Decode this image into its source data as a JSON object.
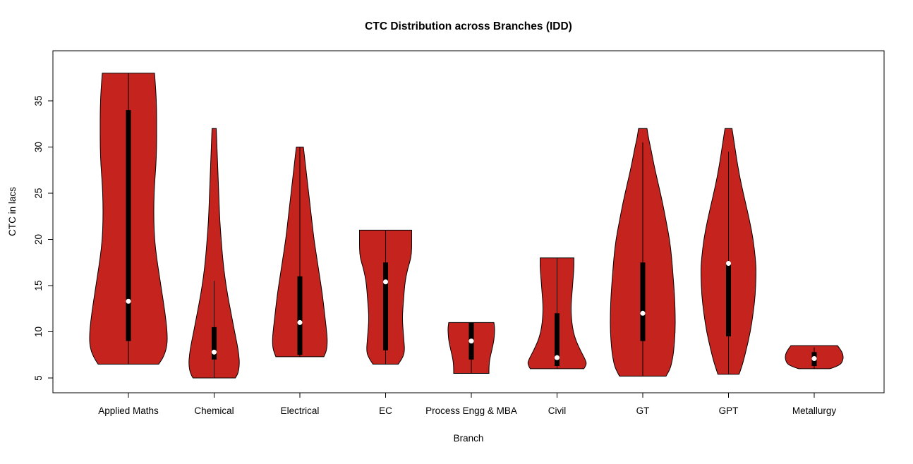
{
  "chart_data": {
    "type": "violin",
    "title": "CTC Distribution across Branches (IDD)",
    "xlabel": "Branch",
    "ylabel": "CTC in lacs",
    "y_ticks": [
      5,
      10,
      15,
      20,
      25,
      30,
      35
    ],
    "ylim": [
      3.5,
      40
    ],
    "grid": false,
    "legend": "none",
    "fill_color": "#C5241E",
    "outline_color": "#000000",
    "box_color": "#000000",
    "median_dot_color": "#FFFFFF",
    "categories": [
      "Applied Maths",
      "Chemical",
      "Electrical",
      "EC",
      "Process Engg & MBA",
      "Civil",
      "GT",
      "GPT",
      "Metallurgy"
    ],
    "series": [
      {
        "label": "Applied Maths",
        "min": 6.5,
        "max": 38,
        "whisker_low": 6.5,
        "whisker_high": 38,
        "q1": 9,
        "q3": 34,
        "median": 13.3,
        "profile": [
          [
            38,
            37
          ],
          [
            36,
            39
          ],
          [
            34,
            40
          ],
          [
            32,
            40
          ],
          [
            30,
            40
          ],
          [
            28,
            39
          ],
          [
            26,
            37
          ],
          [
            24,
            36
          ],
          [
            22,
            36
          ],
          [
            20,
            37
          ],
          [
            18,
            40
          ],
          [
            16,
            44
          ],
          [
            14,
            48
          ],
          [
            12,
            52
          ],
          [
            10,
            55
          ],
          [
            8.5,
            55
          ],
          [
            7.3,
            50
          ],
          [
            6.5,
            43
          ]
        ]
      },
      {
        "label": "Chemical",
        "min": 5,
        "max": 32,
        "whisker_low": 5,
        "whisker_high": 15.5,
        "q1": 7,
        "q3": 10.5,
        "median": 7.8,
        "profile": [
          [
            32,
            3
          ],
          [
            30,
            4
          ],
          [
            28,
            5
          ],
          [
            26,
            6
          ],
          [
            24,
            7
          ],
          [
            22,
            8
          ],
          [
            20,
            10
          ],
          [
            18,
            12
          ],
          [
            16,
            15
          ],
          [
            14,
            19
          ],
          [
            12,
            24
          ],
          [
            10,
            29
          ],
          [
            8.5,
            33
          ],
          [
            7.5,
            35
          ],
          [
            6.5,
            36
          ],
          [
            5.5,
            34
          ],
          [
            5,
            30
          ]
        ]
      },
      {
        "label": "Electrical",
        "min": 7.3,
        "max": 30,
        "whisker_low": 7.3,
        "whisker_high": 30,
        "q1": 7.5,
        "q3": 16,
        "median": 11,
        "profile": [
          [
            30,
            5
          ],
          [
            28,
            8
          ],
          [
            26,
            11
          ],
          [
            24,
            14
          ],
          [
            22,
            17
          ],
          [
            20,
            20
          ],
          [
            18,
            24
          ],
          [
            16,
            28
          ],
          [
            14,
            32
          ],
          [
            12,
            35
          ],
          [
            10,
            38
          ],
          [
            9,
            39
          ],
          [
            8,
            38
          ],
          [
            7.3,
            34
          ]
        ]
      },
      {
        "label": "EC",
        "min": 6.5,
        "max": 21,
        "whisker_low": 6.5,
        "whisker_high": 21,
        "q1": 8,
        "q3": 17.5,
        "median": 15.4,
        "profile": [
          [
            21,
            37
          ],
          [
            20,
            37
          ],
          [
            19,
            37
          ],
          [
            18,
            36
          ],
          [
            17,
            32
          ],
          [
            16,
            29
          ],
          [
            15,
            27
          ],
          [
            14,
            26
          ],
          [
            13,
            25
          ],
          [
            12,
            24
          ],
          [
            11,
            24
          ],
          [
            10,
            25
          ],
          [
            9,
            26
          ],
          [
            8,
            27
          ],
          [
            7.3,
            25
          ],
          [
            6.5,
            18
          ]
        ]
      },
      {
        "label": "Process Engg & MBA",
        "min": 5.5,
        "max": 11,
        "whisker_low": 5.5,
        "whisker_high": 11,
        "q1": 7,
        "q3": 11,
        "median": 9,
        "profile": [
          [
            11,
            32
          ],
          [
            10.5,
            33
          ],
          [
            10,
            33
          ],
          [
            9,
            32
          ],
          [
            8,
            29
          ],
          [
            7,
            26
          ],
          [
            6.2,
            25
          ],
          [
            5.5,
            25
          ]
        ]
      },
      {
        "label": "Civil",
        "min": 6,
        "max": 18,
        "whisker_low": 6,
        "whisker_high": 18,
        "q1": 6.3,
        "q3": 12,
        "median": 7.2,
        "profile": [
          [
            18,
            24
          ],
          [
            17,
            24
          ],
          [
            16,
            23
          ],
          [
            15,
            22
          ],
          [
            14,
            21
          ],
          [
            13,
            20
          ],
          [
            12,
            20
          ],
          [
            11,
            21
          ],
          [
            10,
            23
          ],
          [
            9,
            27
          ],
          [
            8,
            33
          ],
          [
            7,
            40
          ],
          [
            6.5,
            42
          ],
          [
            6,
            38
          ]
        ]
      },
      {
        "label": "GT",
        "min": 5.2,
        "max": 32,
        "whisker_low": 5.2,
        "whisker_high": 30.5,
        "q1": 9,
        "q3": 17.5,
        "median": 12,
        "profile": [
          [
            32,
            6
          ],
          [
            31,
            8
          ],
          [
            30,
            11
          ],
          [
            28,
            16
          ],
          [
            26,
            22
          ],
          [
            24,
            28
          ],
          [
            22,
            33
          ],
          [
            20,
            38
          ],
          [
            18,
            41
          ],
          [
            16,
            43
          ],
          [
            14,
            45
          ],
          [
            12,
            46
          ],
          [
            10,
            46
          ],
          [
            8,
            44
          ],
          [
            7,
            42
          ],
          [
            6,
            39
          ],
          [
            5.2,
            33
          ]
        ]
      },
      {
        "label": "GPT",
        "min": 5.4,
        "max": 32,
        "whisker_low": 5.4,
        "whisker_high": 29.5,
        "q1": 9.5,
        "q3": 17.5,
        "median": 17.4,
        "profile": [
          [
            32,
            5
          ],
          [
            31,
            7
          ],
          [
            30,
            9
          ],
          [
            28,
            13
          ],
          [
            26,
            18
          ],
          [
            24,
            24
          ],
          [
            22,
            30
          ],
          [
            20,
            35
          ],
          [
            18,
            38
          ],
          [
            17,
            39
          ],
          [
            16,
            39
          ],
          [
            14,
            38
          ],
          [
            12,
            35
          ],
          [
            10,
            31
          ],
          [
            8,
            25
          ],
          [
            6.5,
            20
          ],
          [
            5.4,
            15
          ]
        ]
      },
      {
        "label": "Metallurgy",
        "min": 6,
        "max": 8.5,
        "whisker_low": 6,
        "whisker_high": 8.3,
        "q1": 6.3,
        "q3": 7.8,
        "median": 7.1,
        "profile": [
          [
            8.5,
            33
          ],
          [
            8,
            38
          ],
          [
            7.5,
            41
          ],
          [
            7,
            41
          ],
          [
            6.5,
            38
          ],
          [
            6.2,
            30
          ],
          [
            6,
            22
          ]
        ]
      }
    ]
  }
}
